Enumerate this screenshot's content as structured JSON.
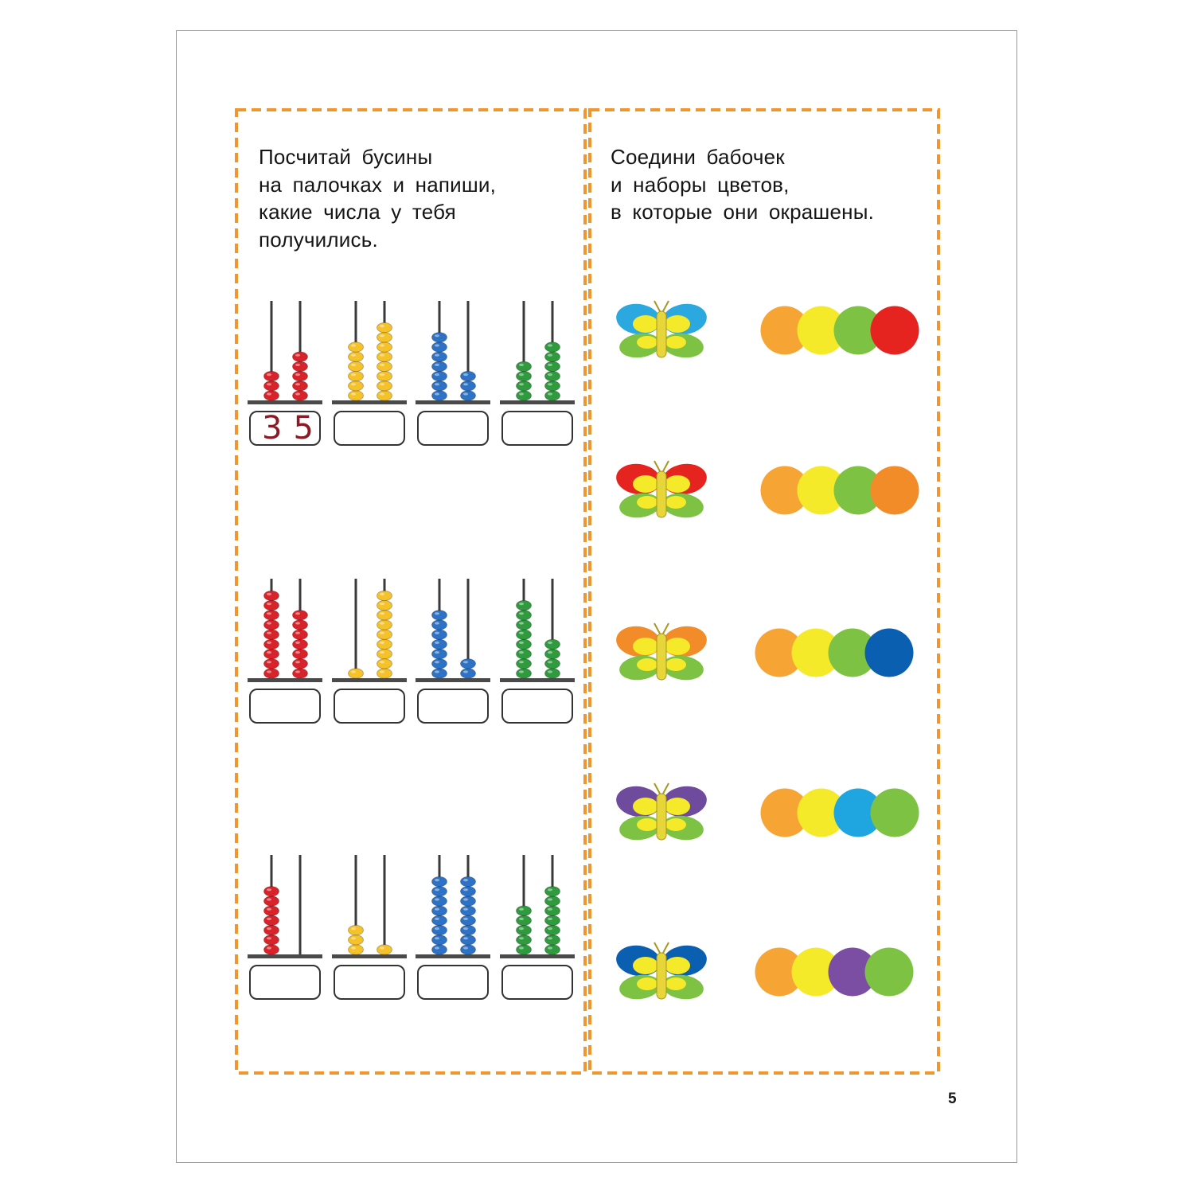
{
  "colors": {
    "frame": "#f0962e",
    "red": "#d9232a",
    "yellow": "#f5c22a",
    "blue": "#2d72c4",
    "green": "#2f9a3e",
    "orange": "#f6a535",
    "lemon": "#f4ea2a",
    "leaf": "#7dc242",
    "crimson": "#e52420",
    "deep_orange": "#f28c28",
    "navy": "#0b5fb0",
    "sky": "#2ba8e0",
    "violet": "#6f4b9e",
    "violet_alt": "#7b4ea3",
    "cyan": "#1fa6e0",
    "body": "#e6d63a"
  },
  "left_task": {
    "instruction_lines": [
      "Посчитай бусины",
      "на палочках и напиши,",
      "какие числа у тебя",
      "получились."
    ],
    "abaci": [
      {
        "color": "red",
        "tens": 3,
        "ones": 5,
        "answer": "35"
      },
      {
        "color": "yellow",
        "tens": 6,
        "ones": 8,
        "answer": ""
      },
      {
        "color": "blue",
        "tens": 7,
        "ones": 3,
        "answer": ""
      },
      {
        "color": "green",
        "tens": 4,
        "ones": 6,
        "answer": ""
      },
      {
        "color": "red",
        "tens": 9,
        "ones": 7,
        "answer": ""
      },
      {
        "color": "yellow",
        "tens": 1,
        "ones": 9,
        "answer": ""
      },
      {
        "color": "blue",
        "tens": 7,
        "ones": 2,
        "answer": ""
      },
      {
        "color": "green",
        "tens": 8,
        "ones": 4,
        "answer": ""
      },
      {
        "color": "red",
        "tens": 7,
        "ones": 0,
        "answer": ""
      },
      {
        "color": "yellow",
        "tens": 3,
        "ones": 1,
        "answer": ""
      },
      {
        "color": "blue",
        "tens": 8,
        "ones": 8,
        "answer": ""
      },
      {
        "color": "green",
        "tens": 5,
        "ones": 7,
        "answer": ""
      }
    ]
  },
  "right_task": {
    "instruction_lines": [
      "Соедини бабочек",
      "и наборы цветов,",
      "в которые они окрашены."
    ],
    "butterflies": [
      {
        "upper": "sky",
        "lower": "leaf",
        "inner": "lemon"
      },
      {
        "upper": "crimson",
        "lower": "leaf",
        "inner": "lemon"
      },
      {
        "upper": "deep_orange",
        "lower": "leaf",
        "inner": "lemon"
      },
      {
        "upper": "violet",
        "lower": "leaf",
        "inner": "lemon"
      },
      {
        "upper": "navy",
        "lower": "leaf",
        "inner": "lemon"
      }
    ],
    "color_sets": [
      [
        "orange",
        "lemon",
        "leaf",
        "crimson"
      ],
      [
        "orange",
        "lemon",
        "leaf",
        "deep_orange"
      ],
      [
        "orange",
        "lemon",
        "leaf",
        "navy"
      ],
      [
        "orange",
        "lemon",
        "cyan",
        "leaf"
      ],
      [
        "orange",
        "lemon",
        "violet_alt",
        "leaf"
      ]
    ]
  },
  "page_number": "5"
}
